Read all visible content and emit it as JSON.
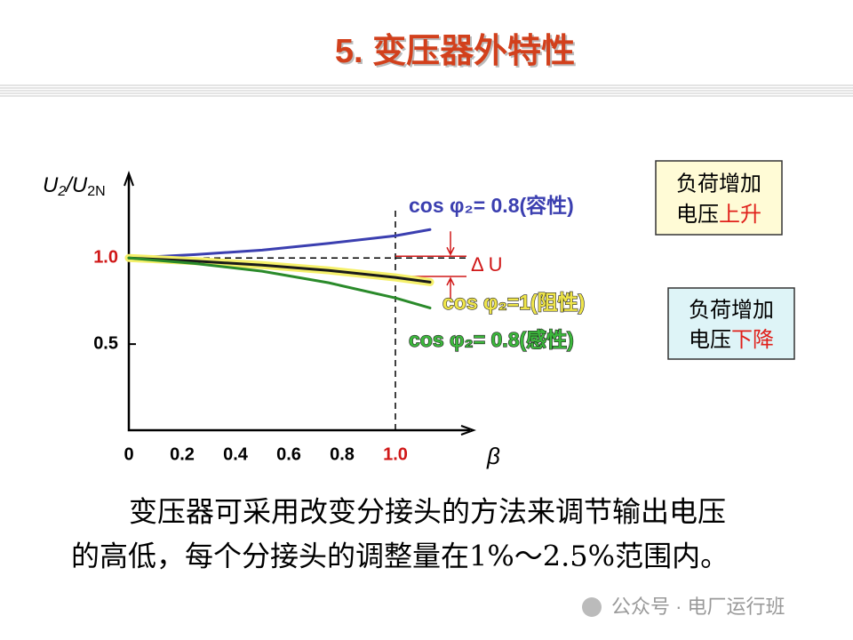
{
  "header": {
    "title": "5. 变压器外特性"
  },
  "chart_data": {
    "type": "line",
    "ylabel_parts": [
      "U",
      "2",
      "/U",
      "2N"
    ],
    "xlabel": "β",
    "x": [
      0,
      0.25,
      0.5,
      0.75,
      1,
      1.13
    ],
    "series": [
      {
        "name": "cos φ₂= 0.8(容性)",
        "color": "#3b3fb0",
        "label_color": "#3b3fb0",
        "values": [
          1,
          1.02,
          1.046,
          1.085,
          1.129,
          1.165
        ]
      },
      {
        "name": "cos φ₂=1(阻性)",
        "color": "#1a1a1a",
        "glow": "#f5f06a",
        "label_color": "#f0e64a",
        "values": [
          1,
          0.982,
          0.959,
          0.928,
          0.887,
          0.86
        ]
      },
      {
        "name": "cos φ₂= 0.8(感性)",
        "color": "#2a8a2a",
        "label_color": "#3cb83c",
        "values": [
          1,
          0.968,
          0.923,
          0.856,
          0.768,
          0.71
        ]
      }
    ],
    "xlim": [
      0,
      1.28
    ],
    "ylim": [
      0,
      1.44
    ],
    "xticks": [
      0,
      0.2,
      0.4,
      0.6,
      0.8,
      {
        "value": 1,
        "label": "1.0"
      }
    ],
    "yticks": [
      0.5,
      {
        "value": 1,
        "label": "1.0"
      }
    ],
    "annotation": "Δ U"
  },
  "notes": [
    {
      "lines": [
        "负荷增加",
        "电压"
      ],
      "highlight": "上升"
    },
    {
      "lines": [
        "负荷增加",
        "电压"
      ],
      "highlight": "下降"
    }
  ],
  "body": {
    "lines": [
      "变压器可采用改变分接头的方法来调节输出电压",
      "的高低，每个分接头的调整量在1%～2.5%范围内。"
    ]
  },
  "footer": {
    "watermark": "公众号 · 电厂运行班"
  }
}
